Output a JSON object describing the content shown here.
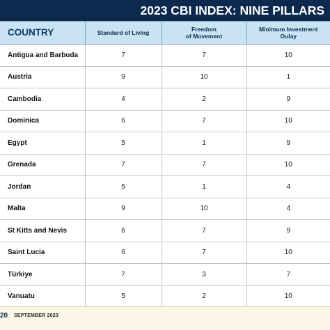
{
  "header": {
    "title": "2023 CBI INDEX: NINE PILLARS"
  },
  "table": {
    "columns": [
      "COUNTRY",
      "Standard of Living",
      "Freedom\nof Movement",
      "Minimum Investment\nOulay"
    ],
    "rows": [
      {
        "country": "Antigua and Barbuda",
        "values": [
          "7",
          "7",
          "10"
        ]
      },
      {
        "country": "Austria",
        "values": [
          "9",
          "10",
          "1"
        ]
      },
      {
        "country": "Cambodia",
        "values": [
          "4",
          "2",
          "9"
        ]
      },
      {
        "country": "Dominica",
        "values": [
          "6",
          "7",
          "10"
        ]
      },
      {
        "country": "Egypt",
        "values": [
          "5",
          "1",
          "9"
        ]
      },
      {
        "country": "Grenada",
        "values": [
          "7",
          "7",
          "10"
        ]
      },
      {
        "country": "Jordan",
        "values": [
          "5",
          "1",
          "4"
        ]
      },
      {
        "country": "Malta",
        "values": [
          "9",
          "10",
          "4"
        ]
      },
      {
        "country": "St Kitts and Nevis",
        "values": [
          "6",
          "7",
          "9"
        ]
      },
      {
        "country": "Saint Lucia",
        "values": [
          "6",
          "7",
          "10"
        ]
      },
      {
        "country": "Türkiye",
        "values": [
          "7",
          "3",
          "7"
        ]
      },
      {
        "country": "Vanuatu",
        "values": [
          "5",
          "2",
          "10"
        ]
      }
    ]
  },
  "footer": {
    "page_number": "20",
    "issue_date": "SEPTEMBER 2023"
  },
  "colors": {
    "title_bar": "#0c2a4e",
    "header_row": "#c9e3f3",
    "footer_band": "#fbf6e6"
  }
}
